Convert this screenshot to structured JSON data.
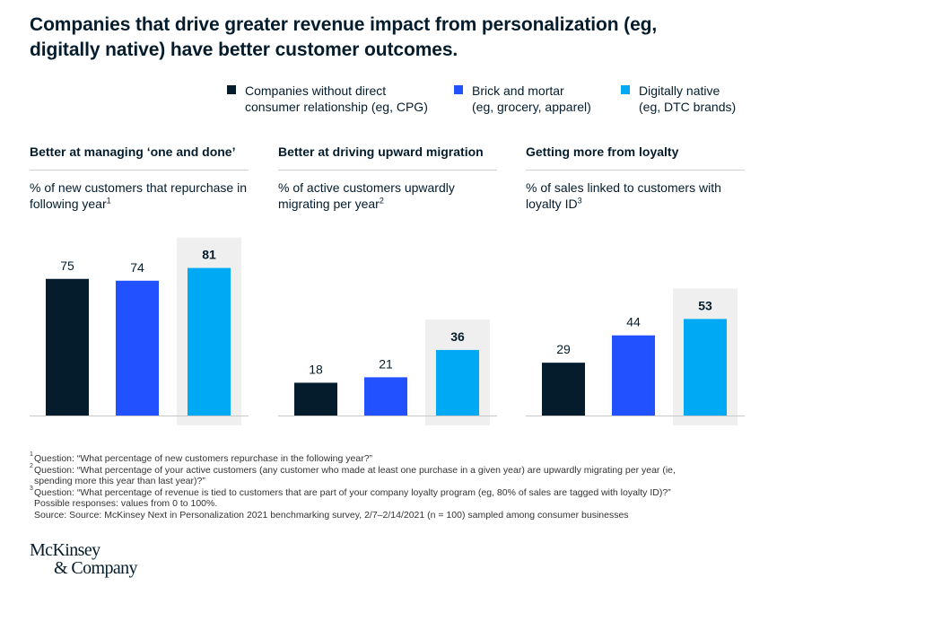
{
  "title": "Companies that drive greater revenue impact from personalization (eg, digitally native) have better customer outcomes.",
  "legend": [
    {
      "label": "Companies without direct\nconsumer relationship (eg, CPG)",
      "color": "#051c2c"
    },
    {
      "label": "Brick and mortar\n(eg, grocery, apparel)",
      "color": "#2251ff"
    },
    {
      "label": "Digitally native\n(eg, DTC brands)",
      "color": "#00a9f4"
    }
  ],
  "chart_data": [
    {
      "type": "bar",
      "title": "Better at managing ‘one and done’",
      "subtitle": "% of new customers that repurchase in following year",
      "footnote_ref": "1",
      "categories": [
        "Companies without direct consumer relationship (eg, CPG)",
        "Brick and mortar (eg, grocery, apparel)",
        "Digitally native (eg, DTC brands)"
      ],
      "values": [
        75,
        74,
        81
      ],
      "highlight_index": 2,
      "ylim": [
        0,
        100
      ],
      "grid": false
    },
    {
      "type": "bar",
      "title": "Better at driving upward migration",
      "subtitle": "% of active customers upwardly migrating per year",
      "footnote_ref": "2",
      "categories": [
        "Companies without direct consumer relationship (eg, CPG)",
        "Brick and mortar (eg, grocery, apparel)",
        "Digitally native (eg, DTC brands)"
      ],
      "values": [
        18,
        21,
        36
      ],
      "highlight_index": 2,
      "ylim": [
        0,
        100
      ],
      "grid": false
    },
    {
      "type": "bar",
      "title": "Getting more from loyalty",
      "subtitle": "% of sales linked to customers with loyalty ID",
      "footnote_ref": "3",
      "categories": [
        "Companies without direct consumer relationship (eg, CPG)",
        "Brick and mortar (eg, grocery, apparel)",
        "Digitally native (eg, DTC brands)"
      ],
      "values": [
        29,
        44,
        53
      ],
      "highlight_index": 2,
      "ylim": [
        0,
        100
      ],
      "grid": false
    }
  ],
  "footnotes": {
    "fn1_mark": "1",
    "fn1": "Question: “What percentage of new customers repurchase in the following year?”",
    "fn2_mark": "2",
    "fn2a": "Question: “What percentage of your active customers (any customer who made at least one purchase in a given year) are upwardly migrating per year (ie,",
    "fn2b": "spending more this year than last year)?”",
    "fn3_mark": "3",
    "fn3": "Question: “What percentage of revenue is tied to customers that are part of your company loyalty program (eg, 80% of sales are tagged with loyalty ID)?”",
    "possible": "Possible responses: values from 0 to 100%.",
    "source": "Source: Source: McKinsey Next in Personalization 2021 benchmarking survey, 2/7–2/14/2021 (n = 100) sampled among consumer businesses"
  },
  "logo": {
    "line1": "McKinsey",
    "line2": "& Company"
  }
}
